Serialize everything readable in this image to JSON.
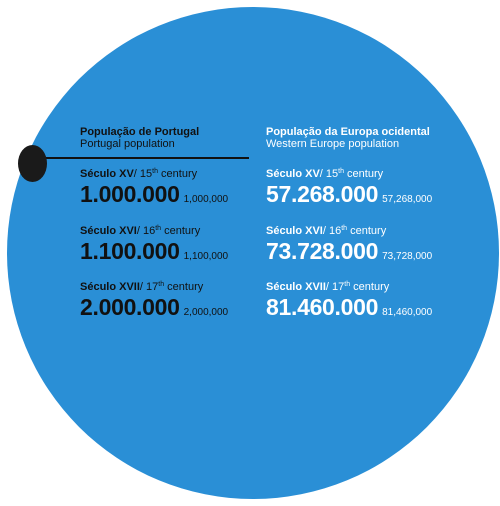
{
  "portugal": {
    "title": "População de Portugal",
    "subtitle": "Portugal population",
    "rows": [
      {
        "century_pt": "Século XV",
        "sep": "/ 15",
        "sup": "th",
        "century_en": " century",
        "value": "1.000.000",
        "value_en": "1,000,000"
      },
      {
        "century_pt": "Século XVI",
        "sep": "/ 16",
        "sup": "th",
        "century_en": " century",
        "value": "1.100.000",
        "value_en": "1,100,000"
      },
      {
        "century_pt": "Século XVII",
        "sep": "/ 17",
        "sup": "th",
        "century_en": " century",
        "value": "2.000.000",
        "value_en": "2,000,000"
      }
    ]
  },
  "europe": {
    "title": "População da Europa ocidental",
    "subtitle": "Western Europe population",
    "rows": [
      {
        "century_pt": "Século XV",
        "sep": "/ 15",
        "sup": "th",
        "century_en": " century",
        "value": "57.268.000",
        "value_en": "57,268,000"
      },
      {
        "century_pt": "Século XVI",
        "sep": "/ 16",
        "sup": "th",
        "century_en": " century",
        "value": "73.728.000",
        "value_en": "73,728,000"
      },
      {
        "century_pt": "Século XVII",
        "sep": "/ 17",
        "sup": "th",
        "century_en": " century",
        "value": "81.460.000",
        "value_en": "81,460,000"
      }
    ]
  },
  "colors": {
    "circle": "#2a8fd6",
    "marker": "#1a1a1a",
    "dark_text": "#111111",
    "light_text": "#ffffff"
  }
}
